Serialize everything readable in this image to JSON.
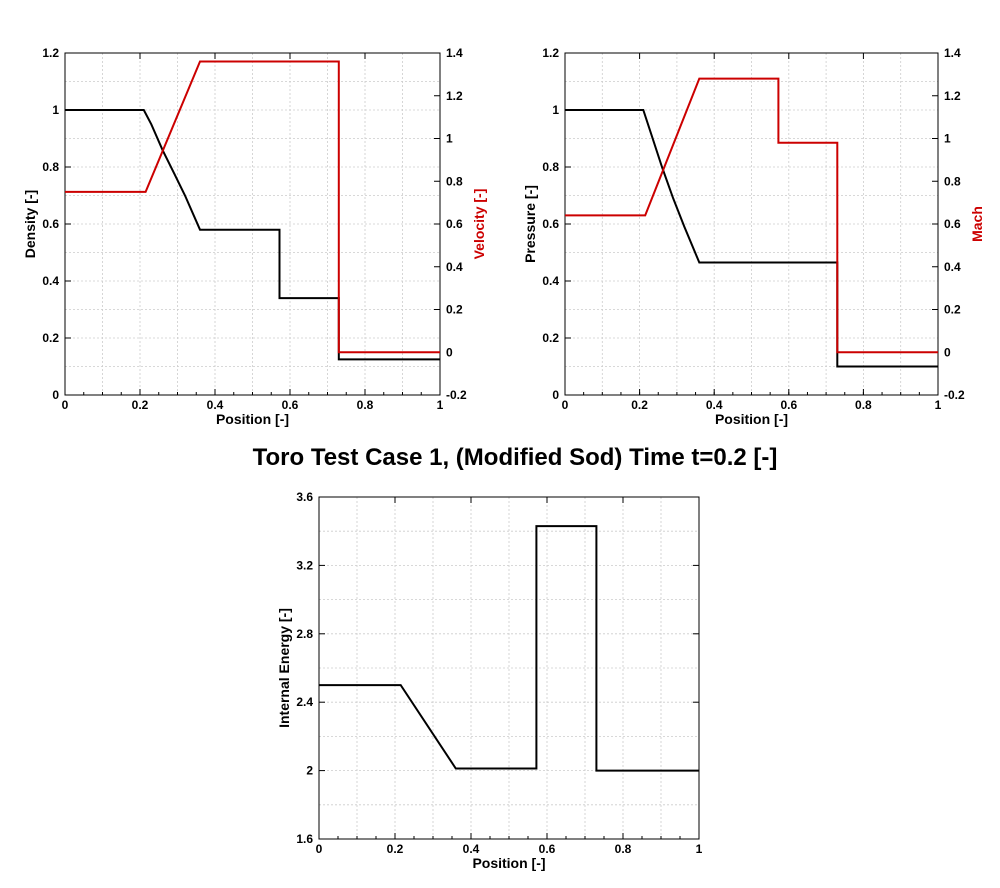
{
  "title": "Toro Test Case 1,  (Modified Sod) Time t=0.2 [-]",
  "colors": {
    "primary": "#000000",
    "secondary": "#cc0000",
    "grid": "#cccccc"
  },
  "chart_data": [
    {
      "type": "line",
      "xlabel": "Position [-]",
      "ylabel": "Density [-]",
      "y2label": "Velocity [-]",
      "xlim": [
        0,
        1
      ],
      "ylim": [
        0,
        1.2
      ],
      "y2lim": [
        -0.2,
        1.4
      ],
      "xticks": [
        "0",
        "0.2",
        "0.4",
        "0.6",
        "0.8",
        "1"
      ],
      "yticks": [
        "0",
        "0.2",
        "0.4",
        "0.6",
        "0.8",
        "1",
        "1.2"
      ],
      "y2ticks": [
        "-0.2",
        "0",
        "0.2",
        "0.4",
        "0.6",
        "0.8",
        "1",
        "1.2",
        "1.4"
      ],
      "grid": true,
      "series": [
        {
          "axis": "left",
          "color": "#000000",
          "x": [
            0,
            0.21,
            0.23,
            0.26,
            0.29,
            0.32,
            0.36,
            0.572,
            0.572,
            0.73,
            0.73,
            1.0
          ],
          "y": [
            1.0,
            1.0,
            0.95,
            0.86,
            0.78,
            0.7,
            0.58,
            0.58,
            0.34,
            0.34,
            0.125,
            0.125
          ]
        },
        {
          "axis": "right",
          "color": "#cc0000",
          "x": [
            0,
            0.215,
            0.36,
            0.73,
            0.73,
            1.0
          ],
          "y": [
            0.75,
            0.75,
            1.36,
            1.36,
            0.0,
            0.0
          ]
        }
      ]
    },
    {
      "type": "line",
      "xlabel": "Position [-]",
      "ylabel": "Pressure [-]",
      "y2label": "Mach",
      "xlim": [
        0,
        1
      ],
      "ylim": [
        0,
        1.2
      ],
      "y2lim": [
        -0.2,
        1.4
      ],
      "xticks": [
        "0",
        "0.2",
        "0.4",
        "0.6",
        "0.8",
        "1"
      ],
      "yticks": [
        "0",
        "0.2",
        "0.4",
        "0.6",
        "0.8",
        "1",
        "1.2"
      ],
      "y2ticks": [
        "-0.2",
        "0",
        "0.2",
        "0.4",
        "0.6",
        "0.8",
        "1",
        "1.2",
        "1.4"
      ],
      "grid": true,
      "series": [
        {
          "axis": "left",
          "color": "#000000",
          "x": [
            0,
            0.21,
            0.23,
            0.26,
            0.29,
            0.32,
            0.36,
            0.73,
            0.73,
            1.0
          ],
          "y": [
            1.0,
            1.0,
            0.92,
            0.8,
            0.69,
            0.59,
            0.465,
            0.465,
            0.1,
            0.1
          ]
        },
        {
          "axis": "right",
          "color": "#cc0000",
          "x": [
            0,
            0.215,
            0.36,
            0.572,
            0.572,
            0.73,
            0.73,
            1.0
          ],
          "y": [
            0.64,
            0.64,
            1.28,
            1.28,
            0.98,
            0.98,
            0.0,
            0.0
          ]
        }
      ]
    },
    {
      "type": "line",
      "xlabel": "Position [-]",
      "ylabel": "Internal Energy [-]",
      "xlim": [
        0,
        1
      ],
      "ylim": [
        1.6,
        3.6
      ],
      "xticks": [
        "0",
        "0.2",
        "0.4",
        "0.6",
        "0.8",
        "1"
      ],
      "yticks": [
        "1.6",
        "2",
        "2.4",
        "2.8",
        "3.2",
        "3.6"
      ],
      "grid": true,
      "series": [
        {
          "axis": "left",
          "color": "#000000",
          "x": [
            0,
            0.215,
            0.36,
            0.572,
            0.572,
            0.73,
            0.73,
            1.0
          ],
          "y": [
            2.5,
            2.5,
            2.012,
            2.012,
            3.43,
            3.43,
            2.0,
            2.0
          ]
        }
      ]
    }
  ]
}
